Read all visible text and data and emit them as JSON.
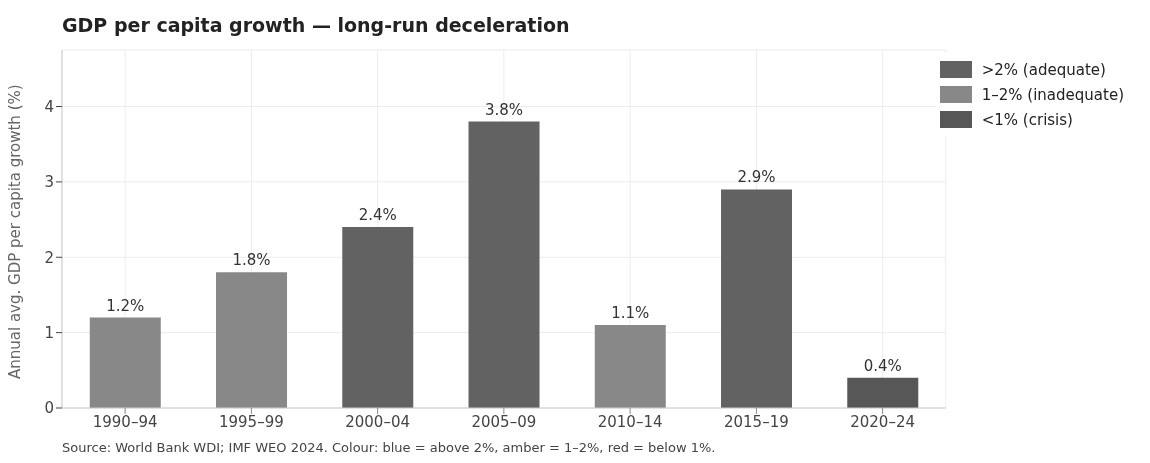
{
  "chart_data": {
    "type": "bar",
    "title": "GDP per capita growth — long-run deceleration",
    "ylabel": "Annual avg. GDP per capita growth (%)",
    "categories": [
      "1990–94",
      "1995–99",
      "2000–04",
      "2005–09",
      "2010–14",
      "2015–19",
      "2020–24"
    ],
    "series": [
      {
        "name": ">2% (adequate)",
        "color": "#626262",
        "values": [
          null,
          null,
          2.4,
          3.8,
          null,
          2.9,
          null
        ],
        "value_labels": [
          null,
          null,
          "2.4%",
          "3.8%",
          null,
          "2.9%",
          null
        ]
      },
      {
        "name": "1–2% (inadequate)",
        "color": "#888888",
        "values": [
          1.2,
          1.8,
          null,
          null,
          1.1,
          null,
          null
        ],
        "value_labels": [
          "1.2%",
          "1.8%",
          null,
          null,
          "1.1%",
          null,
          null
        ]
      },
      {
        "name": "<1% (crisis)",
        "color": "#575757",
        "values": [
          null,
          null,
          null,
          null,
          null,
          null,
          0.4
        ],
        "value_labels": [
          null,
          null,
          null,
          null,
          null,
          null,
          "0.4%"
        ]
      }
    ],
    "stacked": true,
    "ylim": [
      0,
      4.75
    ],
    "yticks": [
      0,
      1,
      2,
      3,
      4
    ],
    "grid": true,
    "legend": "top right",
    "annotations": [
      "Source: World Bank WDI; IMF WEO 2024. Colour: blue = above 2%, amber = 1–2%, red = below 1%."
    ]
  }
}
